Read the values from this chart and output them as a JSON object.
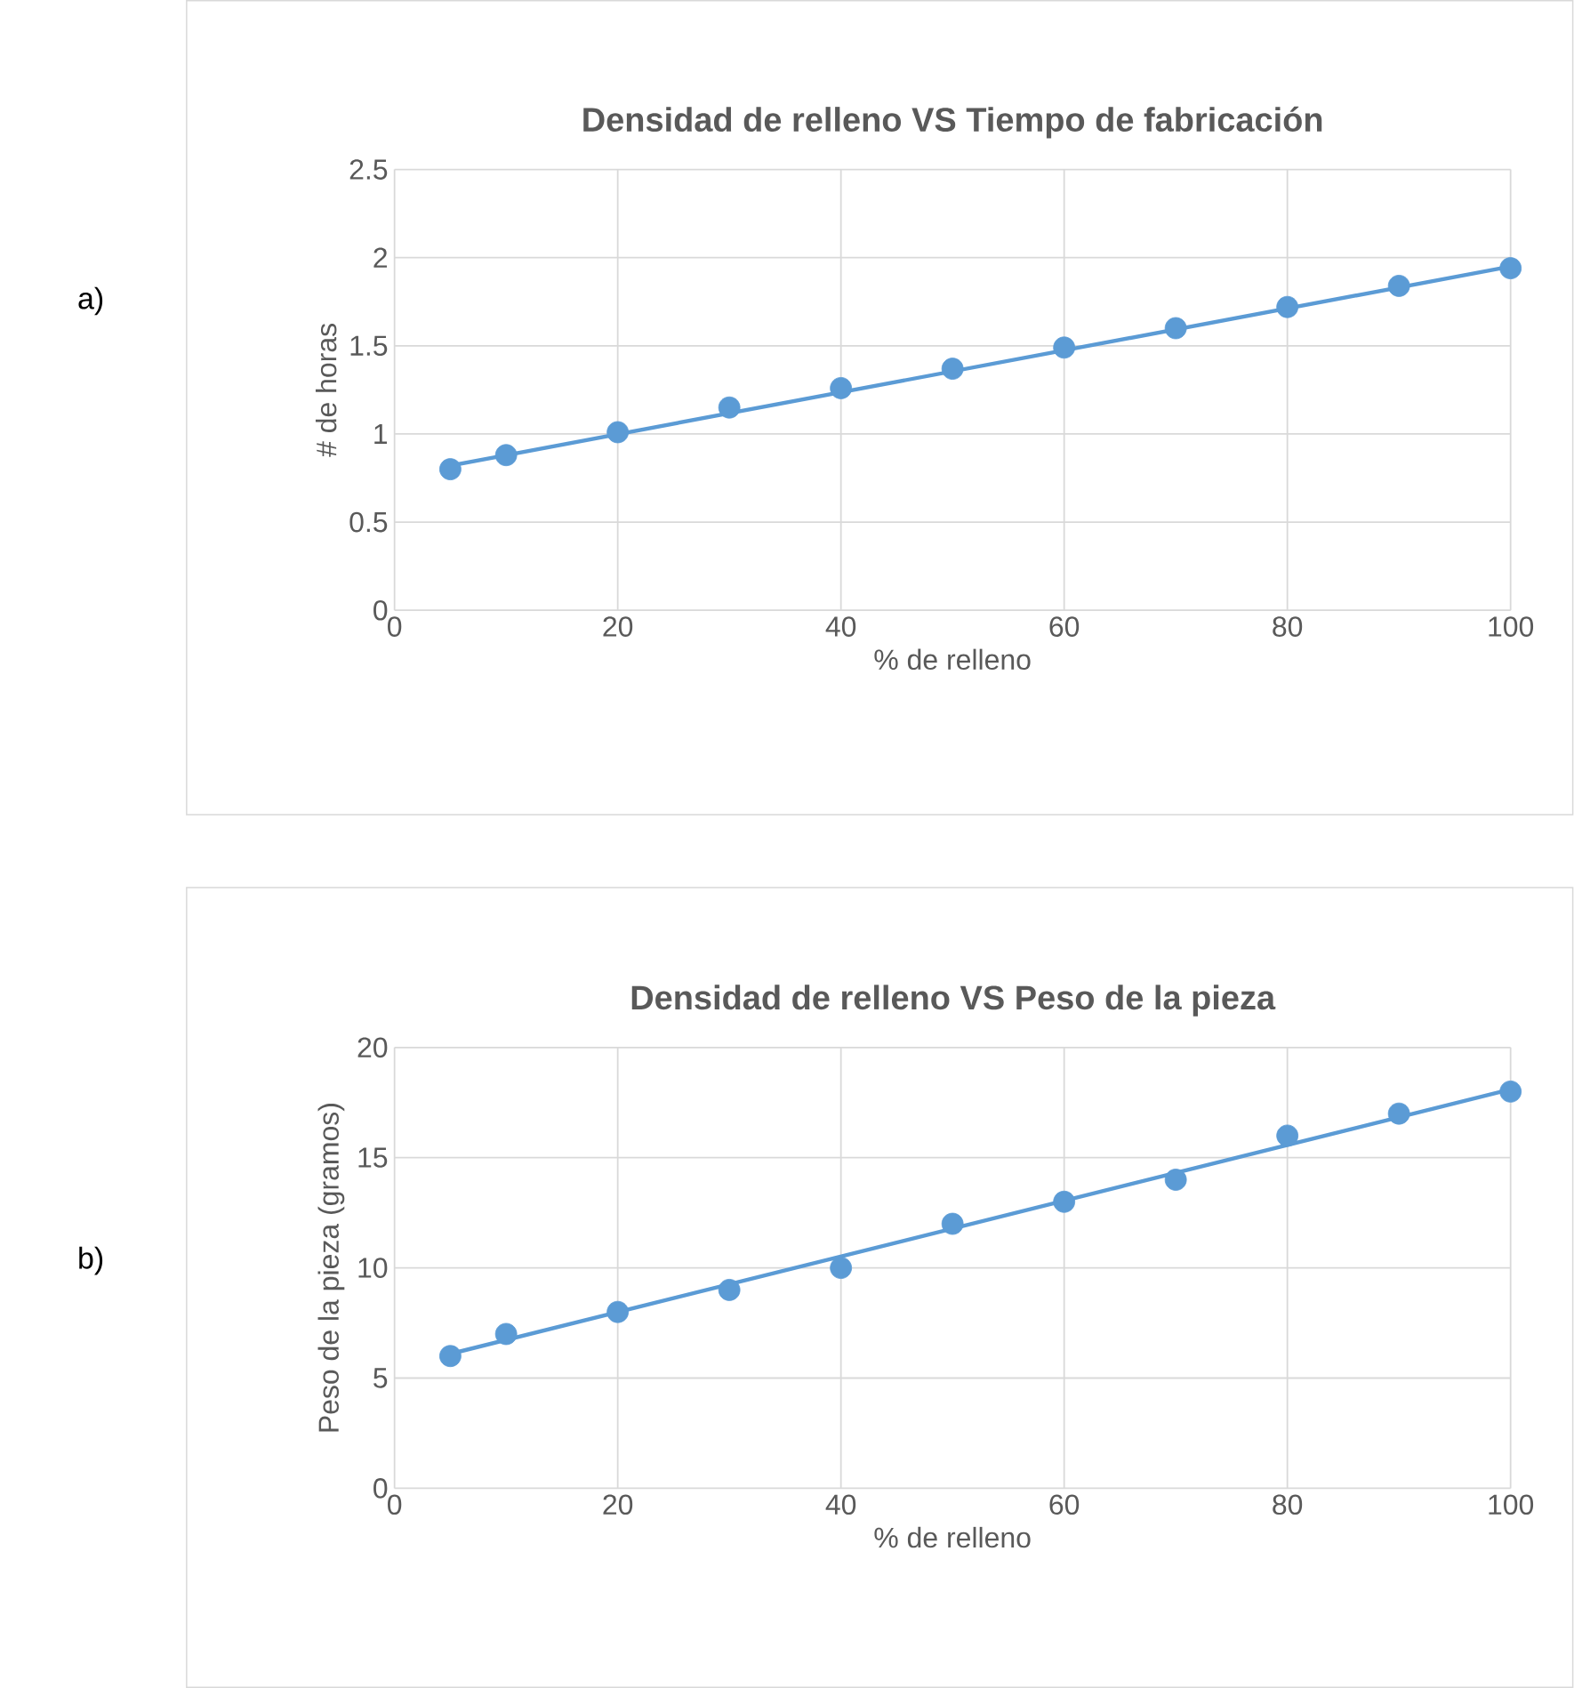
{
  "chart_data": [
    {
      "type": "scatter",
      "title": "Densidad de relleno VS Tiempo de fabricación",
      "xlabel": "% de relleno",
      "ylabel": "# de horas",
      "annotations": [
        "a)"
      ],
      "xlim": [
        0,
        100
      ],
      "xticks": [
        0,
        20,
        40,
        60,
        80,
        100
      ],
      "ylim": [
        0,
        2.5
      ],
      "yticks": [
        0,
        0.5,
        1,
        1.5,
        2,
        2.5
      ],
      "grid": true,
      "series": [
        {
          "type": "line",
          "color": "#5b9bd5",
          "x": [
            5,
            100
          ],
          "values": [
            0.82,
            1.95
          ],
          "line_style": "solid"
        },
        {
          "type": "scatter",
          "color": "#5b9bd5",
          "marker": "circle",
          "x": [
            5,
            10,
            20,
            30,
            40,
            50,
            60,
            70,
            80,
            90,
            100
          ],
          "values": [
            0.8,
            0.88,
            1.01,
            1.15,
            1.26,
            1.37,
            1.49,
            1.6,
            1.72,
            1.84,
            1.94
          ]
        }
      ]
    },
    {
      "type": "scatter",
      "title": "Densidad de relleno VS Peso de la pieza",
      "xlabel": "% de relleno",
      "ylabel": "Peso de la pieza (gramos)",
      "annotations": [
        "b)"
      ],
      "xlim": [
        0,
        100
      ],
      "xticks": [
        0,
        20,
        40,
        60,
        80,
        100
      ],
      "ylim": [
        0,
        20
      ],
      "yticks": [
        0,
        5,
        10,
        15,
        20
      ],
      "grid": true,
      "series": [
        {
          "type": "line",
          "color": "#5b9bd5",
          "x": [
            5,
            100
          ],
          "values": [
            6.1,
            18.1
          ],
          "line_style": "solid"
        },
        {
          "type": "scatter",
          "color": "#5b9bd5",
          "marker": "circle",
          "x": [
            5,
            10,
            20,
            30,
            40,
            50,
            60,
            70,
            80,
            90,
            100
          ],
          "values": [
            6,
            7,
            8,
            9,
            10,
            12,
            13,
            14,
            16,
            17,
            18
          ]
        }
      ]
    }
  ]
}
